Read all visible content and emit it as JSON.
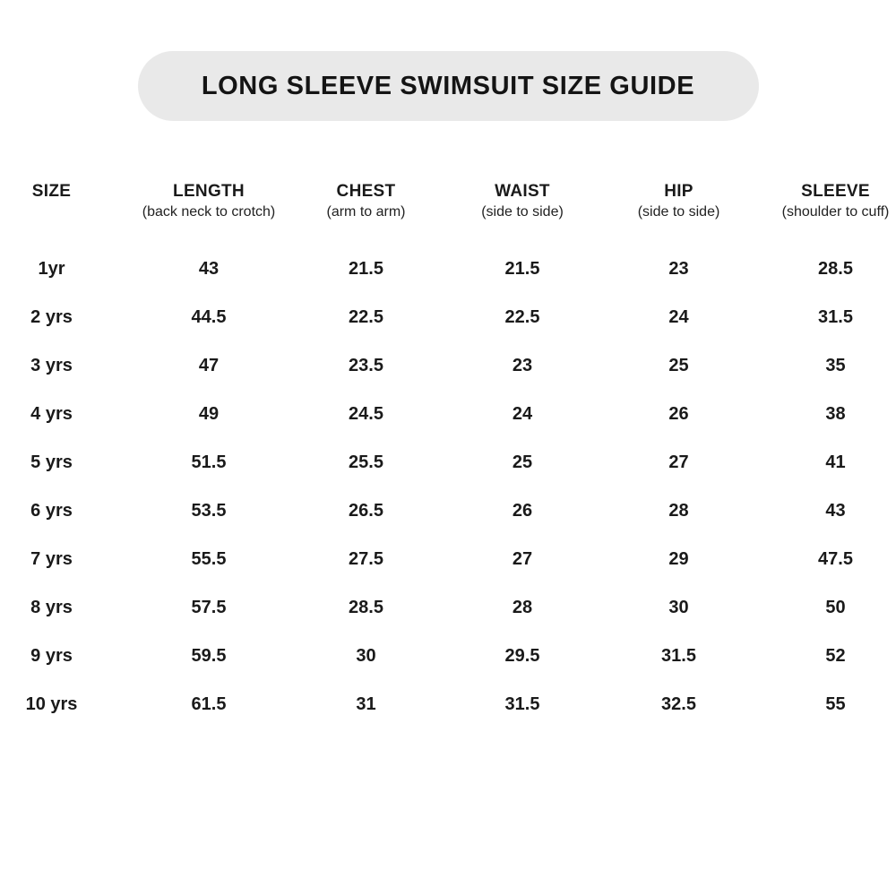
{
  "banner": {
    "title": "LONG SLEEVE SWIMSUIT SIZE GUIDE"
  },
  "colors": {
    "banner_background": "#e9e9e9",
    "text": "#1a1a1a",
    "page_background": "#ffffff"
  },
  "table": {
    "columns": [
      {
        "label": "SIZE",
        "sublabel": ""
      },
      {
        "label": "LENGTH",
        "sublabel": "(back neck to crotch)"
      },
      {
        "label": "CHEST",
        "sublabel": "(arm to arm)"
      },
      {
        "label": "WAIST",
        "sublabel": "(side to side)"
      },
      {
        "label": "HIP",
        "sublabel": "(side to side)"
      },
      {
        "label": "SLEEVE",
        "sublabel": "(shoulder to cuff)"
      }
    ]
  },
  "chart_data": {
    "type": "table",
    "title": "LONG SLEEVE SWIMSUIT SIZE GUIDE",
    "columns": [
      "SIZE",
      "LENGTH (back neck to crotch)",
      "CHEST (arm to arm)",
      "WAIST (side to side)",
      "HIP (side to side)",
      "SLEEVE (shoulder to cuff)"
    ],
    "rows": [
      [
        "1yr",
        43,
        21.5,
        21.5,
        23,
        28.5
      ],
      [
        "2 yrs",
        44.5,
        22.5,
        22.5,
        24,
        31.5
      ],
      [
        "3 yrs",
        47,
        23.5,
        23,
        25,
        35
      ],
      [
        "4 yrs",
        49,
        24.5,
        24,
        26,
        38
      ],
      [
        "5 yrs",
        51.5,
        25.5,
        25,
        27,
        41
      ],
      [
        "6 yrs",
        53.5,
        26.5,
        26,
        28,
        43
      ],
      [
        "7 yrs",
        55.5,
        27.5,
        27,
        29,
        47.5
      ],
      [
        "8 yrs",
        57.5,
        28.5,
        28,
        30,
        50
      ],
      [
        "9 yrs",
        59.5,
        30,
        29.5,
        31.5,
        52
      ],
      [
        "10 yrs",
        61.5,
        31,
        31.5,
        32.5,
        55
      ]
    ]
  }
}
